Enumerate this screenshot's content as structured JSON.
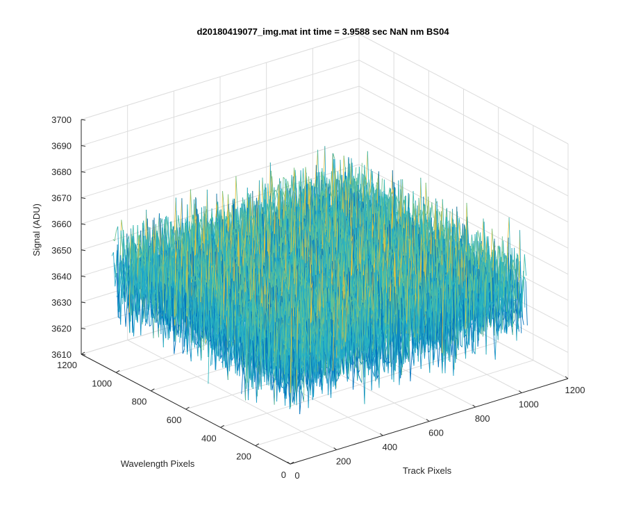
{
  "chart_data": {
    "type": "surface",
    "title": "d20180419077_img.mat int time = 3.9588 sec  NaN nm BS04",
    "xlabel": "Track Pixels",
    "ylabel": "Wavelength Pixels",
    "zlabel": "Signal (ADU)",
    "xlim": [
      0,
      1200
    ],
    "ylim": [
      0,
      1200
    ],
    "zlim": [
      3610,
      3700
    ],
    "xticks": [
      "0",
      "200",
      "400",
      "600",
      "800",
      "1000",
      "1200"
    ],
    "yticks": [
      "0",
      "200",
      "400",
      "600",
      "800",
      "1000",
      "1200"
    ],
    "zticks": [
      "3610",
      "3620",
      "3630",
      "3640",
      "3650",
      "3660",
      "3670",
      "3680",
      "3690",
      "3700"
    ],
    "data_extent": {
      "x": [
        0,
        1024
      ],
      "y": [
        0,
        1024
      ]
    },
    "signal_summary": {
      "min": 3610,
      "max": 3700,
      "mean": 3648
    },
    "grid": true,
    "colormap": [
      "#0072BD",
      "#21A6C9",
      "#2EB7BD",
      "#69C28E",
      "#E8C23A"
    ]
  }
}
